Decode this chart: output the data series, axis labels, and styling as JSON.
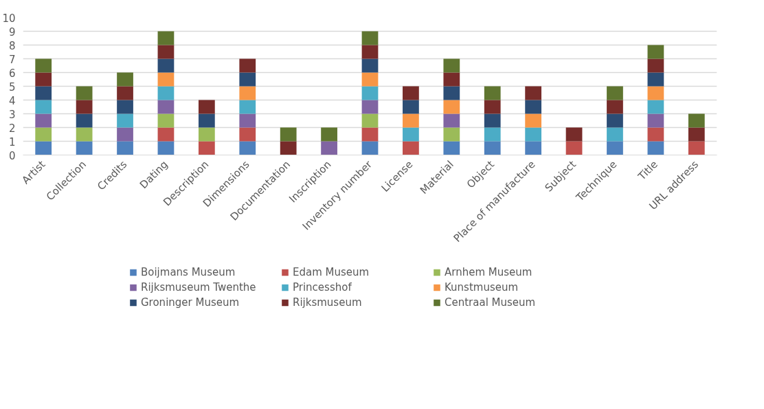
{
  "chart_data": {
    "type": "bar",
    "stacked": true,
    "categories": [
      "Artist",
      "Collection",
      "Credits",
      "Dating",
      "Description",
      "Dimensions",
      "Documentation",
      "Inscription",
      "Inventory number",
      "License",
      "Material",
      "Object",
      "Place of manufacture",
      "Subject",
      "Technique",
      "Title",
      "URL address"
    ],
    "series": [
      {
        "name": "Boijmans Museum",
        "color": "#4f81bd",
        "values": [
          1,
          1,
          1,
          1,
          0,
          1,
          0,
          0,
          1,
          0,
          1,
          1,
          1,
          0,
          1,
          1,
          0
        ]
      },
      {
        "name": "Edam Museum",
        "color": "#c0504d",
        "values": [
          0,
          0,
          0,
          1,
          1,
          1,
          0,
          0,
          1,
          1,
          0,
          0,
          0,
          1,
          0,
          1,
          1
        ]
      },
      {
        "name": "Arnhem Museum",
        "color": "#9bbb59",
        "values": [
          1,
          1,
          0,
          1,
          1,
          0,
          0,
          0,
          1,
          0,
          1,
          0,
          0,
          0,
          0,
          0,
          0
        ]
      },
      {
        "name": "Rijksmuseum Twenthe",
        "color": "#8064a2",
        "values": [
          1,
          0,
          1,
          1,
          0,
          1,
          0,
          1,
          1,
          0,
          1,
          0,
          0,
          0,
          0,
          1,
          0
        ]
      },
      {
        "name": "Princesshof",
        "color": "#4bacc6",
        "values": [
          1,
          0,
          1,
          1,
          0,
          1,
          0,
          0,
          1,
          1,
          0,
          1,
          1,
          0,
          1,
          1,
          0
        ]
      },
      {
        "name": "Kunstmuseum",
        "color": "#f79646",
        "values": [
          0,
          0,
          0,
          1,
          0,
          1,
          0,
          0,
          1,
          1,
          1,
          0,
          1,
          0,
          0,
          1,
          0
        ]
      },
      {
        "name": "Groninger Museum",
        "color": "#2c4d75",
        "values": [
          1,
          1,
          1,
          1,
          1,
          1,
          0,
          0,
          1,
          1,
          1,
          1,
          1,
          0,
          1,
          1,
          0
        ]
      },
      {
        "name": "Rijksmuseum",
        "color": "#772c2a",
        "values": [
          1,
          1,
          1,
          1,
          1,
          1,
          1,
          0,
          1,
          1,
          1,
          1,
          1,
          1,
          1,
          1,
          1
        ]
      },
      {
        "name": "Centraal Museum",
        "color": "#5f7530",
        "values": [
          1,
          1,
          1,
          1,
          0,
          0,
          1,
          1,
          1,
          0,
          1,
          1,
          0,
          0,
          1,
          1,
          1
        ]
      }
    ],
    "ylim": [
      0,
      10
    ],
    "yticks": [
      0,
      1,
      2,
      3,
      4,
      5,
      6,
      7,
      8,
      9,
      10
    ],
    "grid": "y",
    "legend": "bottom"
  }
}
